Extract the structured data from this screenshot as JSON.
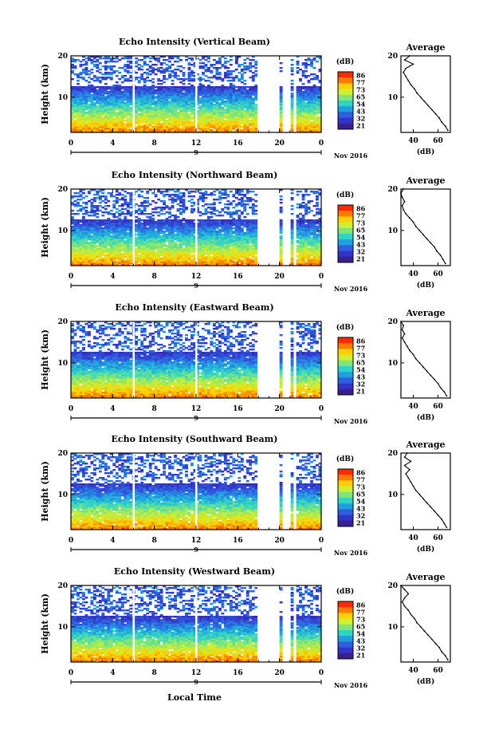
{
  "figure": {
    "xlabel": "Local Time",
    "date_label": "Nov 2016",
    "day_label": "9"
  },
  "colorbar": {
    "unit": "(dB)",
    "ticks": [
      "86",
      "77",
      "73",
      "65",
      "54",
      "43",
      "32",
      "21"
    ],
    "colors": [
      "#ff2a00",
      "#ff7a00",
      "#ffd000",
      "#d0ef30",
      "#7fe57a",
      "#2fd4c8",
      "#1f9fe0",
      "#2f5fe0",
      "#3333c8",
      "#3a1f8f"
    ]
  },
  "chart_data": [
    {
      "type": "heatmap",
      "title": "Echo Intensity (Vertical Beam)",
      "ylabel": "Height (km)",
      "xlabel": "",
      "xlim": [
        0,
        24
      ],
      "ylim": [
        1.5,
        20
      ],
      "xticks": [
        "0",
        "4",
        "8",
        "12",
        "16",
        "20",
        "0"
      ],
      "yticks": [
        "10",
        "20"
      ],
      "gap_hours": [
        [
          18.0,
          20.0
        ],
        [
          20.4,
          21.0
        ],
        [
          21.4,
          21.6
        ],
        [
          22.8,
          23.0
        ]
      ],
      "profile": {
        "title": "Average",
        "xlabel": "(dB)",
        "ylabel": "",
        "xlim": [
          30,
          70
        ],
        "ylim": [
          1.5,
          20
        ],
        "xticks": [
          "40",
          "60"
        ],
        "yticks": [
          "10",
          "20"
        ],
        "height_km": [
          2,
          3,
          4,
          5,
          6,
          7,
          8,
          9,
          10,
          11,
          12,
          13,
          14,
          15,
          16,
          17,
          18,
          19,
          20
        ],
        "db": [
          68,
          66,
          63,
          61,
          58,
          55,
          52,
          49,
          46,
          43,
          41,
          38,
          36,
          34,
          32,
          34,
          40,
          33,
          37
        ]
      }
    },
    {
      "type": "heatmap",
      "title": "Echo Intensity (Northward Beam)",
      "ylabel": "Height (km)",
      "xlabel": "",
      "xlim": [
        0,
        24
      ],
      "ylim": [
        1.5,
        20
      ],
      "xticks": [
        "0",
        "4",
        "8",
        "12",
        "16",
        "20",
        "0"
      ],
      "yticks": [
        "10",
        "20"
      ],
      "gap_hours": [
        [
          18.0,
          20.0
        ],
        [
          20.4,
          21.0
        ],
        [
          21.4,
          21.6
        ],
        [
          22.8,
          23.0
        ]
      ],
      "profile": {
        "title": "Average",
        "xlabel": "(dB)",
        "ylabel": "",
        "xlim": [
          30,
          70
        ],
        "ylim": [
          1.5,
          20
        ],
        "xticks": [
          "40",
          "60"
        ],
        "yticks": [
          "10",
          "20"
        ],
        "height_km": [
          2,
          3,
          4,
          5,
          6,
          7,
          8,
          9,
          10,
          11,
          12,
          13,
          14,
          15,
          16,
          17,
          18,
          19,
          20
        ],
        "db": [
          66,
          64,
          62,
          59,
          57,
          54,
          51,
          48,
          45,
          42,
          40,
          37,
          34,
          32,
          31,
          33,
          31,
          30,
          32
        ]
      }
    },
    {
      "type": "heatmap",
      "title": "Echo Intensity (Eastward Beam)",
      "ylabel": "Height (km)",
      "xlabel": "",
      "xlim": [
        0,
        24
      ],
      "ylim": [
        1.5,
        20
      ],
      "xticks": [
        "0",
        "4",
        "8",
        "12",
        "16",
        "20",
        "0"
      ],
      "yticks": [
        "10",
        "20"
      ],
      "gap_hours": [
        [
          18.0,
          20.0
        ],
        [
          20.4,
          21.0
        ],
        [
          21.4,
          21.6
        ],
        [
          22.8,
          23.0
        ]
      ],
      "profile": {
        "title": "Average",
        "xlabel": "(dB)",
        "ylabel": "",
        "xlim": [
          30,
          70
        ],
        "ylim": [
          1.5,
          20
        ],
        "xticks": [
          "40",
          "60"
        ],
        "yticks": [
          "10",
          "20"
        ],
        "height_km": [
          2,
          3,
          4,
          5,
          6,
          7,
          8,
          9,
          10,
          11,
          12,
          13,
          14,
          15,
          16,
          17,
          18,
          19,
          20
        ],
        "db": [
          67,
          65,
          62,
          60,
          57,
          54,
          51,
          48,
          45,
          42,
          40,
          37,
          35,
          33,
          31,
          33,
          31,
          32,
          30
        ]
      }
    },
    {
      "type": "heatmap",
      "title": "Echo Intensity (Southward Beam)",
      "ylabel": "Height (km)",
      "xlabel": "",
      "xlim": [
        0,
        24
      ],
      "ylim": [
        1.5,
        20
      ],
      "xticks": [
        "0",
        "4",
        "8",
        "12",
        "16",
        "20",
        "0"
      ],
      "yticks": [
        "10",
        "20"
      ],
      "gap_hours": [
        [
          18.0,
          20.0
        ],
        [
          20.4,
          21.0
        ],
        [
          21.4,
          21.6
        ],
        [
          22.8,
          23.0
        ]
      ],
      "profile": {
        "title": "Average",
        "xlabel": "(dB)",
        "ylabel": "",
        "xlim": [
          30,
          70
        ],
        "ylim": [
          1.5,
          20
        ],
        "xticks": [
          "40",
          "60"
        ],
        "yticks": [
          "10",
          "20"
        ],
        "height_km": [
          2,
          3,
          4,
          5,
          6,
          7,
          8,
          9,
          10,
          11,
          12,
          13,
          14,
          15,
          16,
          17,
          18,
          19,
          20
        ],
        "db": [
          67,
          65,
          63,
          60,
          57,
          54,
          51,
          48,
          45,
          42,
          40,
          38,
          36,
          34,
          37,
          33,
          38,
          33,
          35
        ]
      }
    },
    {
      "type": "heatmap",
      "title": "Echo Intensity (Westward Beam)",
      "ylabel": "Height (km)",
      "xlabel": "Local Time",
      "xlim": [
        0,
        24
      ],
      "ylim": [
        1.5,
        20
      ],
      "xticks": [
        "0",
        "4",
        "8",
        "12",
        "16",
        "20",
        "0"
      ],
      "yticks": [
        "10",
        "20"
      ],
      "gap_hours": [
        [
          18.0,
          20.0
        ],
        [
          20.4,
          21.0
        ],
        [
          21.4,
          21.6
        ],
        [
          22.8,
          23.0
        ]
      ],
      "profile": {
        "title": "Average",
        "xlabel": "(dB)",
        "ylabel": "",
        "xlim": [
          30,
          70
        ],
        "ylim": [
          1.5,
          20
        ],
        "xticks": [
          "40",
          "60"
        ],
        "yticks": [
          "10",
          "20"
        ],
        "height_km": [
          2,
          3,
          4,
          5,
          6,
          7,
          8,
          9,
          10,
          11,
          12,
          13,
          14,
          15,
          16,
          17,
          18,
          19,
          20
        ],
        "db": [
          68,
          66,
          63,
          61,
          58,
          55,
          52,
          49,
          46,
          43,
          41,
          38,
          36,
          33,
          31,
          33,
          36,
          33,
          30
        ]
      }
    }
  ]
}
